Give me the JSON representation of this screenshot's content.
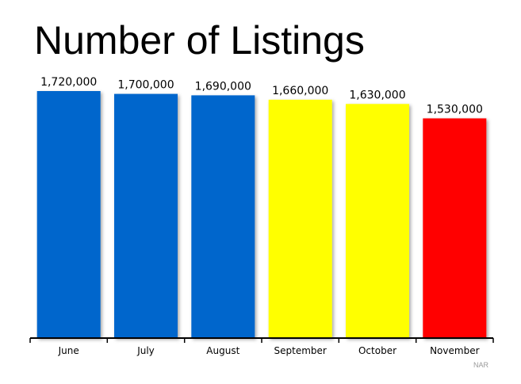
{
  "chart_data": {
    "type": "bar",
    "title": "Number of Listings",
    "categories": [
      "June",
      "July",
      "August",
      "September",
      "October",
      "November"
    ],
    "values": [
      1720000,
      1700000,
      1690000,
      1660000,
      1630000,
      1530000
    ],
    "data_labels": [
      "1,720,000",
      "1,700,000",
      "1,690,000",
      "1,660,000",
      "1,630,000",
      "1,530,000"
    ],
    "bar_colors": [
      "#0066cc",
      "#0066cc",
      "#0066cc",
      "#ffff00",
      "#ffff00",
      "#ff0000"
    ],
    "source": "NAR",
    "xlabel": "",
    "ylabel": "",
    "grid": false,
    "legend": "none"
  }
}
